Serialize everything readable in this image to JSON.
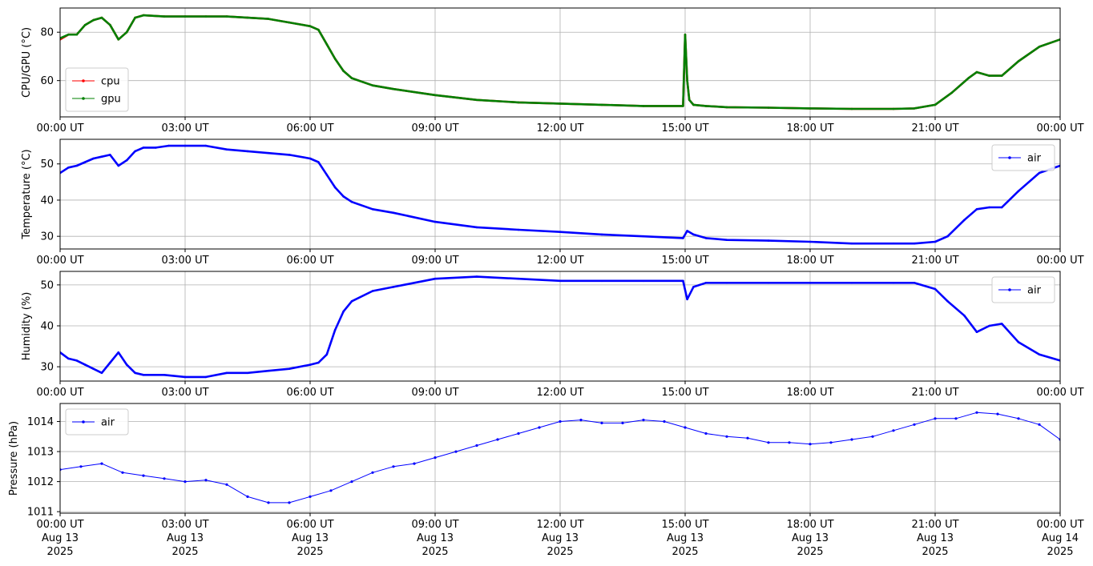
{
  "chart_data": [
    {
      "type": "line",
      "ylabel": "CPU/GPU (°C)",
      "xlim": [
        "2025-08-13 00:00",
        "2025-08-14 00:00"
      ],
      "ylim": [
        45,
        90
      ],
      "yticks": [
        60,
        80
      ],
      "xticks": [
        "00:00 UT",
        "03:00 UT",
        "06:00 UT",
        "09:00 UT",
        "12:00 UT",
        "15:00 UT",
        "18:00 UT",
        "21:00 UT",
        "00:00 UT"
      ],
      "grid": true,
      "legend_position": "lower-left",
      "series": [
        {
          "name": "cpu",
          "color": "#ff0000",
          "x_hours": [
            0,
            0.2,
            0.4,
            0.6,
            0.8,
            1.0,
            1.2,
            1.4,
            1.6,
            1.8,
            2.0,
            2.5,
            3.0,
            3.5,
            4.0,
            4.5,
            5.0,
            5.5,
            6.0,
            6.2,
            6.4,
            6.6,
            6.8,
            7.0,
            7.5,
            8.0,
            9.0,
            10.0,
            11.0,
            12.0,
            13.0,
            14.0,
            14.95,
            15.0,
            15.05,
            15.1,
            15.2,
            15.5,
            16.0,
            17.0,
            18.0,
            19.0,
            20.0,
            20.5,
            21.0,
            21.4,
            21.8,
            22.0,
            22.3,
            22.6,
            23.0,
            23.5,
            24.0
          ],
          "values": [
            77,
            79,
            79,
            83,
            85,
            86,
            83,
            77,
            80,
            86,
            87,
            86.5,
            86.5,
            86.5,
            86.5,
            86,
            85.5,
            84,
            82.5,
            81,
            75,
            69,
            64,
            61,
            58,
            56.5,
            54,
            52,
            51,
            50.5,
            50,
            49.5,
            49.5,
            79,
            60,
            52,
            50,
            49.5,
            49,
            48.8,
            48.5,
            48.3,
            48.3,
            48.5,
            50,
            55,
            61,
            63.5,
            62,
            62,
            68,
            74,
            77
          ]
        },
        {
          "name": "gpu",
          "color": "#008000",
          "x_hours": [
            0,
            0.2,
            0.4,
            0.6,
            0.8,
            1.0,
            1.2,
            1.4,
            1.6,
            1.8,
            2.0,
            2.5,
            3.0,
            3.5,
            4.0,
            4.5,
            5.0,
            5.5,
            6.0,
            6.2,
            6.4,
            6.6,
            6.8,
            7.0,
            7.5,
            8.0,
            9.0,
            10.0,
            11.0,
            12.0,
            13.0,
            14.0,
            14.95,
            15.0,
            15.05,
            15.1,
            15.2,
            15.5,
            16.0,
            17.0,
            18.0,
            19.0,
            20.0,
            20.5,
            21.0,
            21.4,
            21.8,
            22.0,
            22.3,
            22.6,
            23.0,
            23.5,
            24.0
          ],
          "values": [
            77.5,
            79,
            79,
            83,
            85,
            86,
            83,
            77,
            80,
            86,
            87,
            86.5,
            86.5,
            86.5,
            86.5,
            86,
            85.5,
            84,
            82.5,
            81,
            75,
            69,
            64,
            61,
            58,
            56.5,
            54,
            52,
            51,
            50.5,
            50,
            49.5,
            49.5,
            79,
            60,
            52,
            50,
            49.5,
            49,
            48.8,
            48.5,
            48.3,
            48.3,
            48.5,
            50,
            55,
            61,
            63.5,
            62,
            62,
            68,
            74,
            77
          ]
        }
      ]
    },
    {
      "type": "line",
      "ylabel": "Temperature (°C)",
      "xlim": [
        "2025-08-13 00:00",
        "2025-08-14 00:00"
      ],
      "ylim": [
        26.5,
        56.8
      ],
      "yticks": [
        30,
        40,
        50
      ],
      "xticks": [
        "00:00 UT",
        "03:00 UT",
        "06:00 UT",
        "09:00 UT",
        "12:00 UT",
        "15:00 UT",
        "18:00 UT",
        "21:00 UT",
        "00:00 UT"
      ],
      "grid": true,
      "legend_position": "upper-right",
      "series": [
        {
          "name": "air",
          "color": "#0000ff",
          "x_hours": [
            0,
            0.2,
            0.4,
            0.6,
            0.8,
            1.0,
            1.2,
            1.4,
            1.6,
            1.8,
            2.0,
            2.3,
            2.6,
            3.0,
            3.5,
            4.0,
            4.5,
            5.0,
            5.5,
            6.0,
            6.2,
            6.4,
            6.6,
            6.8,
            7.0,
            7.5,
            8.0,
            9.0,
            10.0,
            11.0,
            12.0,
            13.0,
            14.0,
            14.95,
            15.05,
            15.2,
            15.5,
            16.0,
            17.0,
            18.0,
            19.0,
            20.0,
            20.5,
            21.0,
            21.3,
            21.7,
            22.0,
            22.3,
            22.6,
            23.0,
            23.5,
            24.0
          ],
          "values": [
            47.5,
            49,
            49.5,
            50.5,
            51.5,
            52,
            52.5,
            49.5,
            51,
            53.5,
            54.5,
            54.5,
            55,
            55,
            55,
            54,
            53.5,
            53,
            52.5,
            51.5,
            50.5,
            47,
            43.5,
            41,
            39.5,
            37.5,
            36.5,
            34,
            32.5,
            31.8,
            31.2,
            30.5,
            30,
            29.5,
            31.5,
            30.5,
            29.5,
            29,
            28.8,
            28.5,
            28,
            28,
            28,
            28.5,
            30,
            34.5,
            37.5,
            38,
            38,
            42.5,
            47.5,
            49.5
          ]
        }
      ]
    },
    {
      "type": "line",
      "ylabel": "Humidity (%)",
      "xlim": [
        "2025-08-13 00:00",
        "2025-08-14 00:00"
      ],
      "ylim": [
        26.5,
        53.3
      ],
      "yticks": [
        30,
        40,
        50
      ],
      "xticks": [
        "00:00 UT",
        "03:00 UT",
        "06:00 UT",
        "09:00 UT",
        "12:00 UT",
        "15:00 UT",
        "18:00 UT",
        "21:00 UT",
        "00:00 UT"
      ],
      "grid": true,
      "legend_position": "upper-right",
      "series": [
        {
          "name": "air",
          "color": "#0000ff",
          "x_hours": [
            0,
            0.2,
            0.4,
            0.6,
            0.8,
            1.0,
            1.2,
            1.4,
            1.6,
            1.8,
            2.0,
            2.5,
            3.0,
            3.5,
            4.0,
            4.5,
            5.0,
            5.5,
            6.0,
            6.2,
            6.4,
            6.6,
            6.8,
            7.0,
            7.5,
            8.0,
            8.5,
            9.0,
            10.0,
            11.0,
            12.0,
            13.0,
            14.0,
            14.95,
            15.05,
            15.2,
            15.5,
            16.0,
            17.0,
            18.0,
            19.0,
            20.0,
            20.5,
            21.0,
            21.3,
            21.7,
            22.0,
            22.3,
            22.6,
            23.0,
            23.5,
            24.0
          ],
          "values": [
            33.5,
            32,
            31.5,
            30.5,
            29.5,
            28.5,
            31,
            33.5,
            30.5,
            28.5,
            28,
            28,
            27.5,
            27.5,
            28.5,
            28.5,
            29,
            29.5,
            30.5,
            31,
            33,
            39,
            43.5,
            46,
            48.5,
            49.5,
            50.5,
            51.5,
            52,
            51.5,
            51,
            51,
            51,
            51,
            46.5,
            49.5,
            50.5,
            50.5,
            50.5,
            50.5,
            50.5,
            50.5,
            50.5,
            49,
            46,
            42.5,
            38.5,
            40,
            40.5,
            36,
            33,
            31.5
          ]
        }
      ]
    },
    {
      "type": "scatter",
      "ylabel": "Pressure (hPa)",
      "xlim": [
        "2025-08-13 00:00",
        "2025-08-14 00:00"
      ],
      "ylim": [
        1010.95,
        1014.6
      ],
      "yticks": [
        1011,
        1012,
        1013,
        1014
      ],
      "xticks": [
        "00:00 UT",
        "03:00 UT",
        "06:00 UT",
        "09:00 UT",
        "12:00 UT",
        "15:00 UT",
        "18:00 UT",
        "21:00 UT",
        "00:00 UT"
      ],
      "xtick_dates": [
        "Aug 13",
        "Aug 13",
        "Aug 13",
        "Aug 13",
        "Aug 13",
        "Aug 13",
        "Aug 13",
        "Aug 13",
        "Aug 14"
      ],
      "xtick_years": [
        "2025",
        "2025",
        "2025",
        "2025",
        "2025",
        "2025",
        "2025",
        "2025",
        "2025"
      ],
      "grid": true,
      "legend_position": "upper-left",
      "series": [
        {
          "name": "air",
          "color": "#0000ff",
          "x_hours": [
            0,
            0.5,
            1.0,
            1.5,
            2.0,
            2.5,
            3.0,
            3.5,
            4.0,
            4.5,
            5.0,
            5.5,
            6.0,
            6.5,
            7.0,
            7.5,
            8.0,
            8.5,
            9.0,
            9.5,
            10.0,
            10.5,
            11.0,
            11.5,
            12.0,
            12.5,
            13.0,
            13.5,
            14.0,
            14.5,
            15.0,
            15.5,
            16.0,
            16.5,
            17.0,
            17.5,
            18.0,
            18.5,
            19.0,
            19.5,
            20.0,
            20.5,
            21.0,
            21.5,
            22.0,
            22.5,
            23.0,
            23.5,
            24.0
          ],
          "values": [
            1012.4,
            1012.5,
            1012.6,
            1012.3,
            1012.2,
            1012.1,
            1012.0,
            1012.05,
            1011.9,
            1011.5,
            1011.3,
            1011.3,
            1011.5,
            1011.7,
            1012.0,
            1012.3,
            1012.5,
            1012.6,
            1012.8,
            1013.0,
            1013.2,
            1013.4,
            1013.6,
            1013.8,
            1014.0,
            1014.05,
            1013.95,
            1013.95,
            1014.05,
            1014.0,
            1013.8,
            1013.6,
            1013.5,
            1013.45,
            1013.3,
            1013.3,
            1013.25,
            1013.3,
            1013.4,
            1013.5,
            1013.7,
            1013.9,
            1014.1,
            1014.1,
            1014.3,
            1014.25,
            1014.1,
            1013.9,
            1013.4
          ]
        }
      ]
    }
  ]
}
